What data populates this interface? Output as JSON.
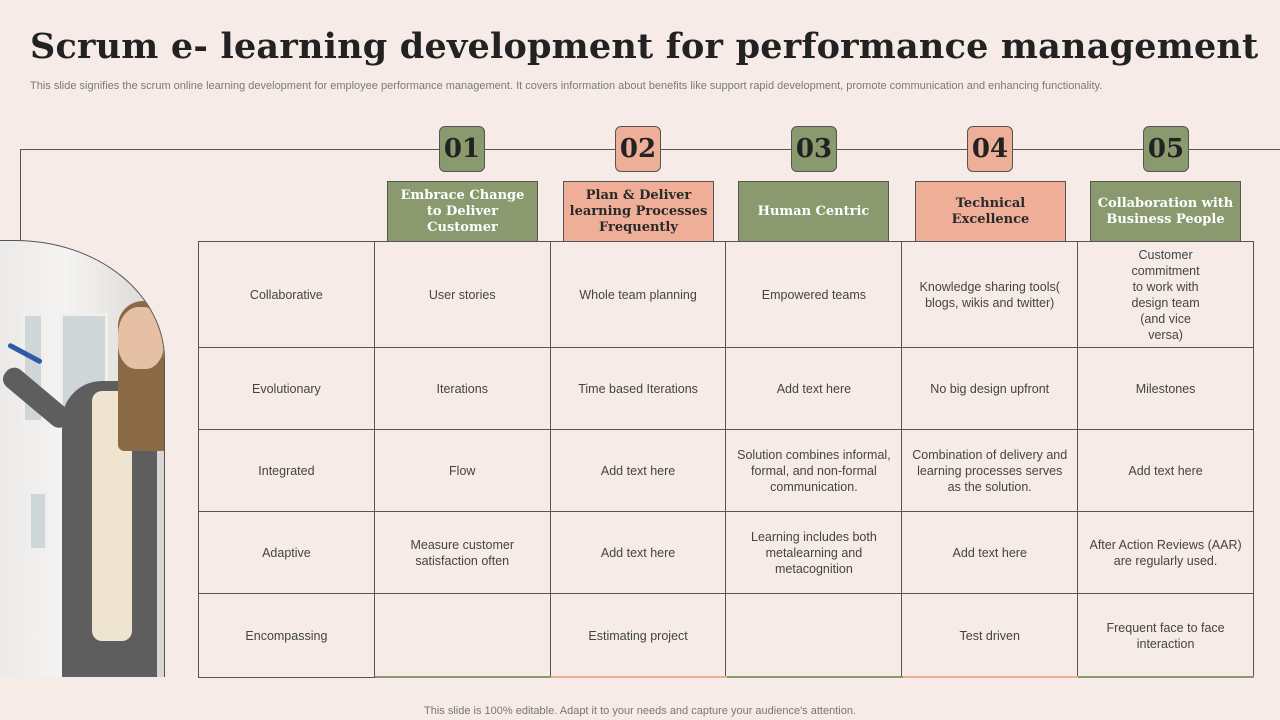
{
  "title": "Scrum e- learning development for performance management",
  "subtitle": "This slide signifies the scrum online learning development for employee performance management. It covers information about benefits like support rapid development, promote communication and enhancing functionality.",
  "footer": "This slide is 100% editable. Adapt it to your needs and capture your audience's attention.",
  "colors": {
    "green": "#8a9a6e",
    "salmon": "#efae98",
    "background": "#f6ebe6"
  },
  "steps": [
    {
      "number": "01",
      "label": "Embrace Change to Deliver Customer",
      "color": "green"
    },
    {
      "number": "02",
      "label": "Plan & Deliver learning Processes Frequently",
      "color": "salmon"
    },
    {
      "number": "03",
      "label": "Human Centric",
      "color": "green"
    },
    {
      "number": "04",
      "label": "Technical Excellence",
      "color": "salmon"
    },
    {
      "number": "05",
      "label": "Collaboration with Business People",
      "color": "green"
    }
  ],
  "rows": [
    {
      "label": "Collaborative",
      "cells": [
        "User stories",
        "Whole team planning",
        "Empowered teams",
        "Knowledge sharing tools( blogs, wikis and twitter)",
        "Customer commitment to work with design team (and vice versa)"
      ]
    },
    {
      "label": "Evolutionary",
      "cells": [
        "Iterations",
        "Time based Iterations",
        "Add text here",
        "No big design upfront",
        "Milestones"
      ]
    },
    {
      "label": "Integrated",
      "cells": [
        "Flow",
        "Add text here",
        "Solution combines informal, formal, and non-formal communication.",
        "Combination of delivery and learning processes serves as the solution.",
        "Add text here"
      ]
    },
    {
      "label": "Adaptive",
      "cells": [
        "Measure customer satisfaction often",
        "Add text here",
        "Learning includes both metalearning and metacognition",
        "Add text here",
        "After Action Reviews (AAR) are regularly used."
      ]
    },
    {
      "label": "Encompassing",
      "cells": [
        "",
        "Estimating project",
        "",
        "Test driven",
        "Frequent face to face interaction"
      ]
    }
  ]
}
